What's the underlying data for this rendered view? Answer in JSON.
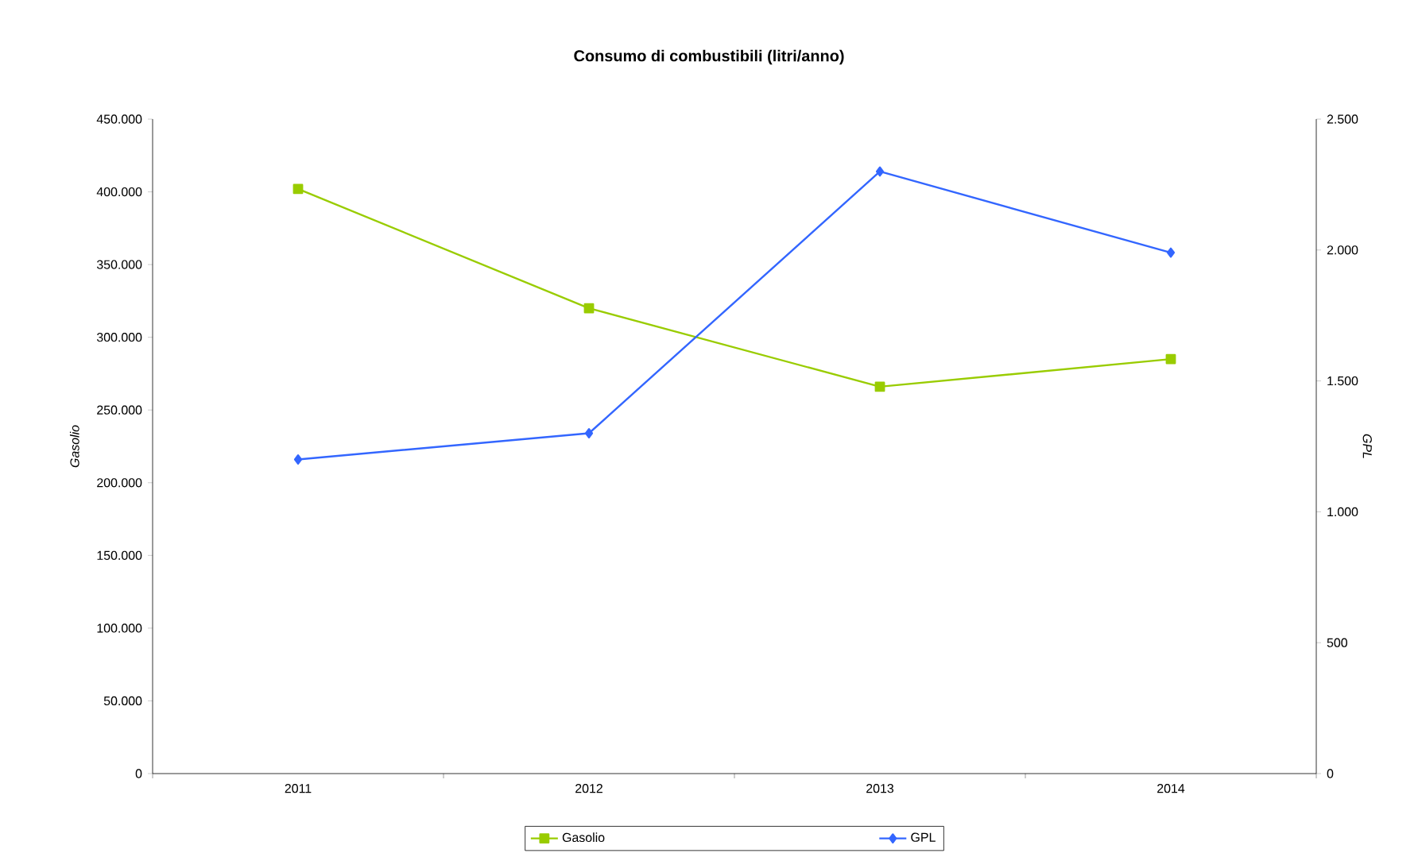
{
  "chart_data": {
    "type": "line",
    "title": "Consumo di combustibili (litri/anno)",
    "ylabel": "Gasolio",
    "y2label": "GPL",
    "categories": [
      "2011",
      "2012",
      "2013",
      "2014"
    ],
    "series": [
      {
        "name": "Gasolio",
        "color": "#99cc00",
        "marker": "square",
        "values": [
          402000,
          320000,
          266000,
          285000
        ]
      },
      {
        "name": "GPL",
        "color": "#3366ff",
        "marker": "diamond",
        "axis": "y2",
        "values": [
          1200,
          1300,
          2300,
          1990
        ]
      }
    ],
    "ylim": [
      0,
      450000
    ],
    "yticks": [
      0,
      {
        "value": 50000,
        "label": "50.000"
      },
      {
        "value": 100000,
        "label": "100.000"
      },
      {
        "value": 150000,
        "label": "150.000"
      },
      {
        "value": 200000,
        "label": "200.000"
      },
      {
        "value": 250000,
        "label": "250.000"
      },
      {
        "value": 300000,
        "label": "300.000"
      },
      {
        "value": 350000,
        "label": "350.000"
      },
      {
        "value": 400000,
        "label": "400.000"
      },
      {
        "value": 450000,
        "label": "450.000"
      }
    ],
    "y2lim": [
      0,
      2500
    ],
    "y2ticks": [
      0,
      500,
      {
        "value": 1000,
        "label": "1.000"
      },
      {
        "value": 1500,
        "label": "1.500"
      },
      {
        "value": 2000,
        "label": "2.000"
      },
      {
        "value": 2500,
        "label": "2.500"
      }
    ],
    "legend": "bottom",
    "grid": false,
    "line_style": "solid"
  }
}
